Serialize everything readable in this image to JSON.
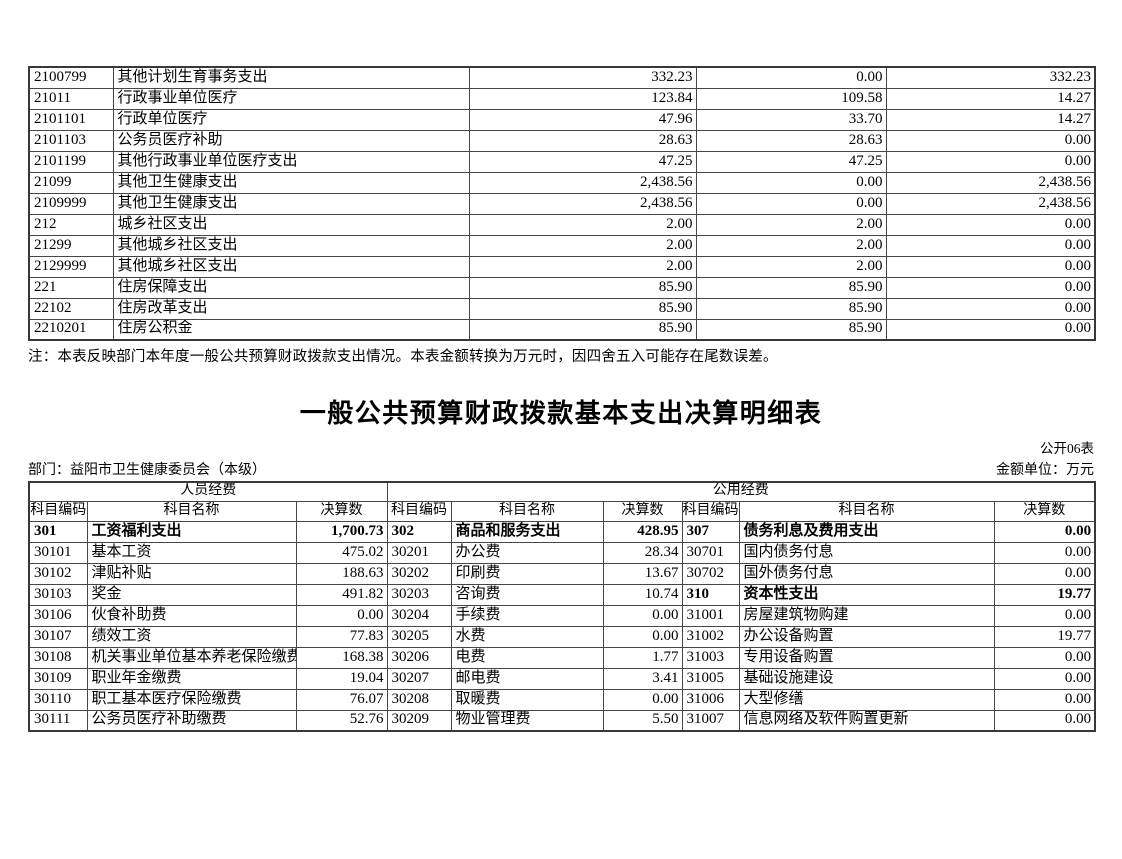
{
  "meta": {
    "note": "注：本表反映部门本年度一般公共预算财政拨款支出情况。本表金额转换为万元时，因四舍五入可能存在尾数误差。",
    "title": "一般公共预算财政拨款基本支出决算明细表",
    "table_no": "公开06表",
    "unit": "金额单位：万元",
    "department": "部门：益阳市卫生健康委员会（本级）"
  },
  "top_table": {
    "rows": [
      {
        "code": "2100799",
        "name": "其他计划生育事务支出",
        "v1": "332.23",
        "v2": "0.00",
        "v3": "332.23"
      },
      {
        "code": "21011",
        "name": "行政事业单位医疗",
        "v1": "123.84",
        "v2": "109.58",
        "v3": "14.27"
      },
      {
        "code": "2101101",
        "name": "行政单位医疗",
        "v1": "47.96",
        "v2": "33.70",
        "v3": "14.27"
      },
      {
        "code": "2101103",
        "name": "公务员医疗补助",
        "v1": "28.63",
        "v2": "28.63",
        "v3": "0.00"
      },
      {
        "code": "2101199",
        "name": "其他行政事业单位医疗支出",
        "v1": "47.25",
        "v2": "47.25",
        "v3": "0.00"
      },
      {
        "code": "21099",
        "name": "其他卫生健康支出",
        "v1": "2,438.56",
        "v2": "0.00",
        "v3": "2,438.56"
      },
      {
        "code": "2109999",
        "name": "其他卫生健康支出",
        "v1": "2,438.56",
        "v2": "0.00",
        "v3": "2,438.56"
      },
      {
        "code": "212",
        "name": "城乡社区支出",
        "v1": "2.00",
        "v2": "2.00",
        "v3": "0.00"
      },
      {
        "code": "21299",
        "name": "其他城乡社区支出",
        "v1": "2.00",
        "v2": "2.00",
        "v3": "0.00"
      },
      {
        "code": "2129999",
        "name": "其他城乡社区支出",
        "v1": "2.00",
        "v2": "2.00",
        "v3": "0.00"
      },
      {
        "code": "221",
        "name": "住房保障支出",
        "v1": "85.90",
        "v2": "85.90",
        "v3": "0.00"
      },
      {
        "code": "22102",
        "name": "住房改革支出",
        "v1": "85.90",
        "v2": "85.90",
        "v3": "0.00"
      },
      {
        "code": "2210201",
        "name": "住房公积金",
        "v1": "85.90",
        "v2": "85.90",
        "v3": "0.00"
      }
    ]
  },
  "detail": {
    "group_headers": [
      "人员经费",
      "公用经费"
    ],
    "col_headers": [
      "科目编码",
      "科目名称",
      "决算数",
      "科目编码",
      "科目名称",
      "决算数",
      "科目编码",
      "科目名称",
      "决算数"
    ],
    "rows": [
      {
        "c1": "301",
        "n1": "工资福利支出",
        "v1": "1,700.73",
        "b1": true,
        "c2": "302",
        "n2": "商品和服务支出",
        "v2": "428.95",
        "b2": true,
        "c3": "307",
        "n3": "债务利息及费用支出",
        "v3": "0.00",
        "b3": true
      },
      {
        "c1": "30101",
        "n1": "基本工资",
        "v1": "475.02",
        "b1": false,
        "c2": "30201",
        "n2": "办公费",
        "v2": "28.34",
        "b2": false,
        "c3": "30701",
        "n3": "国内债务付息",
        "v3": "0.00",
        "b3": false
      },
      {
        "c1": "30102",
        "n1": "津贴补贴",
        "v1": "188.63",
        "b1": false,
        "c2": "30202",
        "n2": "印刷费",
        "v2": "13.67",
        "b2": false,
        "c3": "30702",
        "n3": "国外债务付息",
        "v3": "0.00",
        "b3": false
      },
      {
        "c1": "30103",
        "n1": "奖金",
        "v1": "491.82",
        "b1": false,
        "c2": "30203",
        "n2": "咨询费",
        "v2": "10.74",
        "b2": false,
        "c3": "310",
        "n3": "资本性支出",
        "v3": "19.77",
        "b3": true
      },
      {
        "c1": "30106",
        "n1": "伙食补助费",
        "v1": "0.00",
        "b1": false,
        "c2": "30204",
        "n2": "手续费",
        "v2": "0.00",
        "b2": false,
        "c3": "31001",
        "n3": "房屋建筑物购建",
        "v3": "0.00",
        "b3": false
      },
      {
        "c1": "30107",
        "n1": "绩效工资",
        "v1": "77.83",
        "b1": false,
        "c2": "30205",
        "n2": "水费",
        "v2": "0.00",
        "b2": false,
        "c3": "31002",
        "n3": "办公设备购置",
        "v3": "19.77",
        "b3": false
      },
      {
        "c1": "30108",
        "n1": "机关事业单位基本养老保险缴费",
        "v1": "168.38",
        "b1": false,
        "c2": "30206",
        "n2": "电费",
        "v2": "1.77",
        "b2": false,
        "c3": "31003",
        "n3": "专用设备购置",
        "v3": "0.00",
        "b3": false
      },
      {
        "c1": "30109",
        "n1": "职业年金缴费",
        "v1": "19.04",
        "b1": false,
        "c2": "30207",
        "n2": "邮电费",
        "v2": "3.41",
        "b2": false,
        "c3": "31005",
        "n3": "基础设施建设",
        "v3": "0.00",
        "b3": false
      },
      {
        "c1": "30110",
        "n1": "职工基本医疗保险缴费",
        "v1": "76.07",
        "b1": false,
        "c2": "30208",
        "n2": "取暖费",
        "v2": "0.00",
        "b2": false,
        "c3": "31006",
        "n3": "大型修缮",
        "v3": "0.00",
        "b3": false
      },
      {
        "c1": "30111",
        "n1": "公务员医疗补助缴费",
        "v1": "52.76",
        "b1": false,
        "c2": "30209",
        "n2": "物业管理费",
        "v2": "5.50",
        "b2": false,
        "c3": "31007",
        "n3": "信息网络及软件购置更新",
        "v3": "0.00",
        "b3": false
      }
    ]
  }
}
